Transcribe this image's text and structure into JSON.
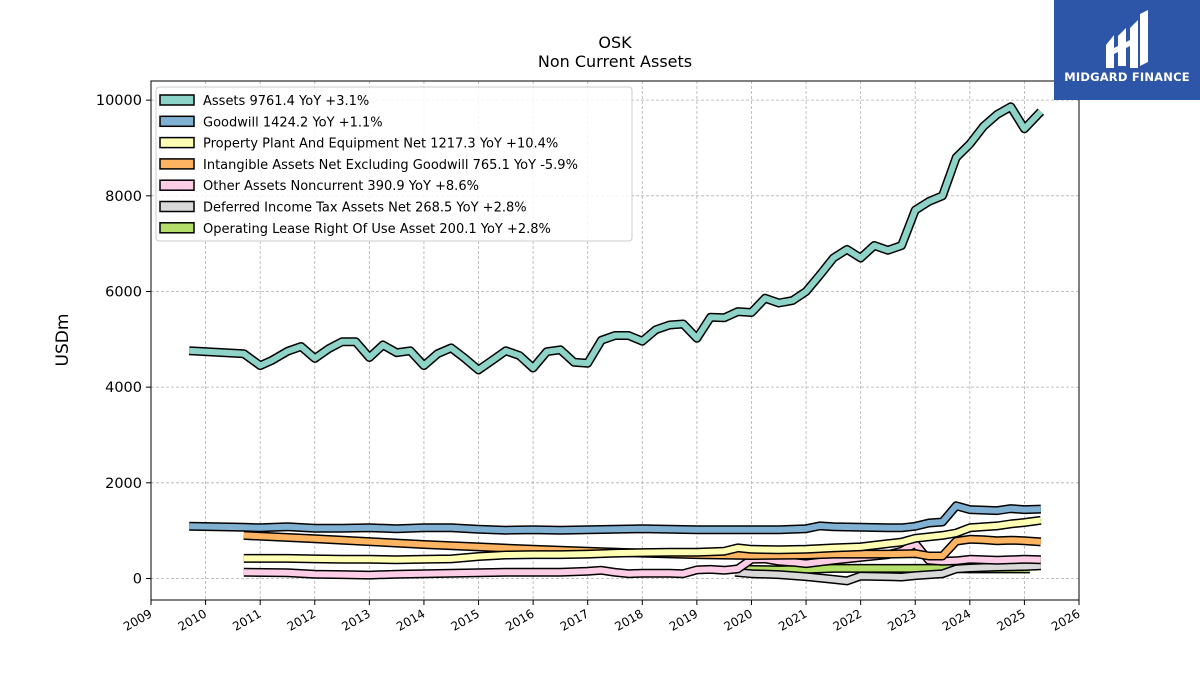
{
  "header": {
    "title": "OSK",
    "subtitle": "Non Current  Assets"
  },
  "brand": {
    "name": "MIDGARD FINANCE",
    "bg": "#2e56a8"
  },
  "chart_data": {
    "type": "line",
    "ylabel": "USDm",
    "xlim": [
      2009,
      2026
    ],
    "ylim": [
      -450,
      10400
    ],
    "x_ticks": [
      "2009",
      "2010",
      "2011",
      "2012",
      "2013",
      "2014",
      "2015",
      "2016",
      "2017",
      "2018",
      "2019",
      "2020",
      "2021",
      "2022",
      "2023",
      "2024",
      "2025",
      "2026"
    ],
    "y_ticks": [
      "0",
      "2000",
      "4000",
      "6000",
      "8000",
      "10000"
    ],
    "grid": true,
    "legend_position": "top-left",
    "series": [
      {
        "name": "Assets",
        "legend": "Assets  9761.4 YoY +3.1%",
        "color": "#8dd3c7",
        "points": [
          [
            2009.7,
            4760
          ],
          [
            2010.7,
            4700
          ],
          [
            2011.0,
            4450
          ],
          [
            2011.2,
            4550
          ],
          [
            2011.5,
            4750
          ],
          [
            2011.75,
            4850
          ],
          [
            2012.0,
            4600
          ],
          [
            2012.25,
            4800
          ],
          [
            2012.5,
            4950
          ],
          [
            2012.75,
            4950
          ],
          [
            2013.0,
            4620
          ],
          [
            2013.25,
            4880
          ],
          [
            2013.5,
            4720
          ],
          [
            2013.75,
            4760
          ],
          [
            2014.0,
            4450
          ],
          [
            2014.25,
            4700
          ],
          [
            2014.5,
            4820
          ],
          [
            2014.75,
            4600
          ],
          [
            2015.0,
            4360
          ],
          [
            2015.25,
            4560
          ],
          [
            2015.5,
            4760
          ],
          [
            2015.75,
            4660
          ],
          [
            2016.0,
            4400
          ],
          [
            2016.25,
            4740
          ],
          [
            2016.5,
            4780
          ],
          [
            2016.75,
            4520
          ],
          [
            2017.0,
            4500
          ],
          [
            2017.25,
            4980
          ],
          [
            2017.5,
            5080
          ],
          [
            2017.75,
            5080
          ],
          [
            2018.0,
            4960
          ],
          [
            2018.25,
            5200
          ],
          [
            2018.5,
            5300
          ],
          [
            2018.75,
            5320
          ],
          [
            2019.0,
            5020
          ],
          [
            2019.25,
            5460
          ],
          [
            2019.5,
            5450
          ],
          [
            2019.75,
            5580
          ],
          [
            2020.0,
            5560
          ],
          [
            2020.25,
            5860
          ],
          [
            2020.5,
            5760
          ],
          [
            2020.75,
            5810
          ],
          [
            2021.0,
            6000
          ],
          [
            2021.25,
            6340
          ],
          [
            2021.5,
            6700
          ],
          [
            2021.75,
            6880
          ],
          [
            2022.0,
            6700
          ],
          [
            2022.25,
            6960
          ],
          [
            2022.5,
            6860
          ],
          [
            2022.75,
            6960
          ],
          [
            2023.0,
            7700
          ],
          [
            2023.25,
            7880
          ],
          [
            2023.5,
            8000
          ],
          [
            2023.75,
            8800
          ],
          [
            2024.0,
            9080
          ],
          [
            2024.25,
            9450
          ],
          [
            2024.5,
            9700
          ],
          [
            2024.75,
            9860
          ],
          [
            2025.0,
            9400
          ],
          [
            2025.3,
            9760
          ]
        ]
      },
      {
        "name": "Goodwill",
        "legend": "Goodwill  1424.2 YoY +1.1%",
        "color": "#80b1d3",
        "points": [
          [
            2009.7,
            1090
          ],
          [
            2010.7,
            1070
          ],
          [
            2011.0,
            1060
          ],
          [
            2011.5,
            1080
          ],
          [
            2012.0,
            1050
          ],
          [
            2012.5,
            1050
          ],
          [
            2013.0,
            1060
          ],
          [
            2013.5,
            1040
          ],
          [
            2014.0,
            1060
          ],
          [
            2014.5,
            1060
          ],
          [
            2015.0,
            1030
          ],
          [
            2015.5,
            1010
          ],
          [
            2016.0,
            1020
          ],
          [
            2016.5,
            1010
          ],
          [
            2017.0,
            1020
          ],
          [
            2017.5,
            1030
          ],
          [
            2018.0,
            1040
          ],
          [
            2018.5,
            1030
          ],
          [
            2019.0,
            1020
          ],
          [
            2019.5,
            1020
          ],
          [
            2020.0,
            1020
          ],
          [
            2020.5,
            1020
          ],
          [
            2021.0,
            1040
          ],
          [
            2021.25,
            1100
          ],
          [
            2021.5,
            1080
          ],
          [
            2022.0,
            1070
          ],
          [
            2022.5,
            1060
          ],
          [
            2022.75,
            1060
          ],
          [
            2023.0,
            1090
          ],
          [
            2023.25,
            1160
          ],
          [
            2023.5,
            1180
          ],
          [
            2023.75,
            1520
          ],
          [
            2024.0,
            1440
          ],
          [
            2024.25,
            1430
          ],
          [
            2024.5,
            1420
          ],
          [
            2024.75,
            1460
          ],
          [
            2025.0,
            1440
          ],
          [
            2025.3,
            1450
          ]
        ]
      },
      {
        "name": "Property Plant And Equipment Net",
        "legend": "Property Plant And Equipment Net  1217.3 YoY +10.4%",
        "color": "#ffffb3",
        "points": [
          [
            2010.7,
            420
          ],
          [
            2011.5,
            420
          ],
          [
            2012.0,
            410
          ],
          [
            2012.5,
            400
          ],
          [
            2013.0,
            400
          ],
          [
            2013.5,
            390
          ],
          [
            2014.0,
            400
          ],
          [
            2014.5,
            410
          ],
          [
            2015.0,
            460
          ],
          [
            2015.5,
            490
          ],
          [
            2016.0,
            500
          ],
          [
            2016.5,
            500
          ],
          [
            2017.0,
            510
          ],
          [
            2017.5,
            530
          ],
          [
            2018.0,
            540
          ],
          [
            2018.5,
            550
          ],
          [
            2019.0,
            550
          ],
          [
            2019.5,
            570
          ],
          [
            2019.75,
            640
          ],
          [
            2020.0,
            610
          ],
          [
            2020.5,
            600
          ],
          [
            2021.0,
            610
          ],
          [
            2021.5,
            640
          ],
          [
            2022.0,
            660
          ],
          [
            2022.5,
            730
          ],
          [
            2022.75,
            760
          ],
          [
            2023.0,
            840
          ],
          [
            2023.5,
            900
          ],
          [
            2023.75,
            950
          ],
          [
            2024.0,
            1060
          ],
          [
            2024.5,
            1100
          ],
          [
            2024.75,
            1140
          ],
          [
            2025.0,
            1170
          ],
          [
            2025.3,
            1217
          ]
        ]
      },
      {
        "name": "Intangible Assets Net Excluding Goodwill",
        "legend": "Intangible Assets Net Excluding Goodwill  765.1 YoY -5.9%",
        "color": "#fdb462",
        "points": [
          [
            2010.7,
            900
          ],
          [
            2012.0,
            830
          ],
          [
            2013.0,
            770
          ],
          [
            2014.0,
            710
          ],
          [
            2015.0,
            660
          ],
          [
            2016.0,
            610
          ],
          [
            2017.0,
            570
          ],
          [
            2018.0,
            530
          ],
          [
            2019.0,
            500
          ],
          [
            2020.0,
            480
          ],
          [
            2021.0,
            490
          ],
          [
            2021.5,
            510
          ],
          [
            2022.0,
            510
          ],
          [
            2022.5,
            510
          ],
          [
            2023.0,
            520
          ],
          [
            2023.25,
            470
          ],
          [
            2023.5,
            470
          ],
          [
            2023.75,
            780
          ],
          [
            2024.0,
            820
          ],
          [
            2024.25,
            810
          ],
          [
            2024.5,
            790
          ],
          [
            2024.75,
            800
          ],
          [
            2025.0,
            790
          ],
          [
            2025.3,
            765
          ]
        ]
      },
      {
        "name": "Other Assets Noncurrent",
        "legend": "Other Assets Noncurrent  390.9 YoY +8.6%",
        "color": "#fccde5",
        "points": [
          [
            2010.7,
            130
          ],
          [
            2011.5,
            120
          ],
          [
            2012.0,
            90
          ],
          [
            2012.5,
            80
          ],
          [
            2013.0,
            70
          ],
          [
            2013.5,
            90
          ],
          [
            2014.0,
            100
          ],
          [
            2014.5,
            110
          ],
          [
            2015.0,
            120
          ],
          [
            2015.5,
            130
          ],
          [
            2016.0,
            130
          ],
          [
            2016.5,
            130
          ],
          [
            2017.0,
            150
          ],
          [
            2017.25,
            170
          ],
          [
            2017.5,
            130
          ],
          [
            2017.75,
            100
          ],
          [
            2018.0,
            110
          ],
          [
            2018.5,
            110
          ],
          [
            2018.75,
            100
          ],
          [
            2019.0,
            180
          ],
          [
            2019.25,
            190
          ],
          [
            2019.5,
            170
          ],
          [
            2019.75,
            200
          ],
          [
            2020.0,
            400
          ],
          [
            2020.25,
            410
          ],
          [
            2020.5,
            360
          ],
          [
            2020.75,
            340
          ],
          [
            2021.0,
            310
          ],
          [
            2021.5,
            380
          ],
          [
            2022.0,
            440
          ],
          [
            2022.5,
            500
          ],
          [
            2022.75,
            570
          ],
          [
            2023.0,
            730
          ],
          [
            2023.25,
            380
          ],
          [
            2023.5,
            360
          ],
          [
            2023.75,
            370
          ],
          [
            2024.0,
            400
          ],
          [
            2024.5,
            380
          ],
          [
            2024.75,
            390
          ],
          [
            2025.0,
            400
          ],
          [
            2025.3,
            391
          ]
        ]
      },
      {
        "name": "Deferred Income Tax Assets Net",
        "legend": "Deferred Income Tax Assets Net  268.5 YoY +2.8%",
        "color": "#d9d9d9",
        "points": [
          [
            2019.7,
            130
          ],
          [
            2020.0,
            100
          ],
          [
            2020.5,
            80
          ],
          [
            2021.0,
            40
          ],
          [
            2021.5,
            -20
          ],
          [
            2021.75,
            -50
          ],
          [
            2022.0,
            50
          ],
          [
            2022.5,
            40
          ],
          [
            2022.75,
            30
          ],
          [
            2023.0,
            60
          ],
          [
            2023.5,
            100
          ],
          [
            2023.75,
            200
          ],
          [
            2024.0,
            220
          ],
          [
            2024.5,
            240
          ],
          [
            2025.0,
            250
          ],
          [
            2025.3,
            268
          ]
        ]
      },
      {
        "name": "Operating Lease Right Of Use Asset",
        "legend": "Operating Lease Right Of Use Asset  200.1 YoY +2.8%",
        "color": "#b3de69",
        "points": [
          [
            2019.9,
            190
          ],
          [
            2020.5,
            180
          ],
          [
            2021.0,
            190
          ],
          [
            2021.5,
            210
          ],
          [
            2022.0,
            210
          ],
          [
            2022.5,
            210
          ],
          [
            2023.0,
            210
          ],
          [
            2023.5,
            210
          ],
          [
            2024.0,
            200
          ],
          [
            2024.5,
            200
          ],
          [
            2025.0,
            200
          ],
          [
            2025.1,
            200
          ]
        ]
      }
    ]
  }
}
